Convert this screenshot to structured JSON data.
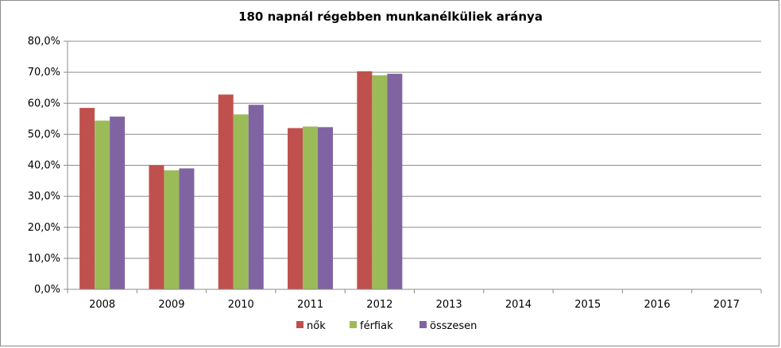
{
  "chart_data": {
    "type": "bar",
    "title": "180 napnál régebben munkanélküliek aránya",
    "xlabel": "",
    "ylabel": "",
    "categories": [
      "2008",
      "2009",
      "2010",
      "2011",
      "2012",
      "2013",
      "2014",
      "2015",
      "2016",
      "2017"
    ],
    "series": [
      {
        "name": "nők",
        "color": "#c0504d",
        "values": [
          58.5,
          40.0,
          62.8,
          52.0,
          70.3,
          null,
          null,
          null,
          null,
          null
        ]
      },
      {
        "name": "férfiak",
        "color": "#9bbb59",
        "values": [
          54.4,
          38.4,
          56.4,
          52.5,
          69.0,
          null,
          null,
          null,
          null,
          null
        ]
      },
      {
        "name": "összesen",
        "color": "#8064a2",
        "values": [
          55.7,
          39.0,
          59.5,
          52.3,
          69.5,
          null,
          null,
          null,
          null,
          null
        ]
      }
    ],
    "ylim": [
      0,
      80
    ],
    "yticks": [
      0,
      10,
      20,
      30,
      40,
      50,
      60,
      70,
      80
    ],
    "ytick_labels": [
      "0,0%",
      "10,0%",
      "20,0%",
      "30,0%",
      "40,0%",
      "50,0%",
      "60,0%",
      "70,0%",
      "80,0%"
    ],
    "grid": true,
    "legend_position": "bottom"
  }
}
